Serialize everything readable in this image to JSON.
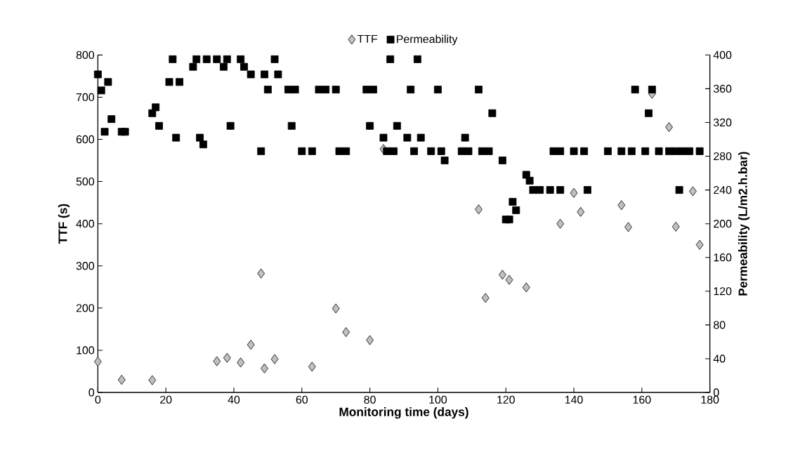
{
  "chart_data": {
    "type": "scatter",
    "xlabel": "Monitoring time (days)",
    "ylabel": "TTF (s)",
    "y2label": "Permeability (L/m2.h.bar)",
    "legend": "top",
    "grid": false,
    "xlim": [
      0,
      180
    ],
    "xticks": [
      0,
      20,
      40,
      60,
      80,
      100,
      120,
      140,
      160,
      180
    ],
    "ylim": [
      0,
      800
    ],
    "yticks": [
      0,
      100,
      200,
      300,
      400,
      500,
      600,
      700,
      800
    ],
    "y2lim": [
      0,
      400
    ],
    "y2ticks": [
      0,
      40,
      80,
      120,
      160,
      200,
      240,
      280,
      320,
      360,
      400
    ],
    "series": [
      {
        "name": "TTF",
        "color": "#c0c0c0",
        "marker": "diamond",
        "axis": "y",
        "x": [
          0,
          7,
          16,
          35,
          38,
          42,
          45,
          48,
          49,
          52,
          63,
          70,
          73,
          80,
          84,
          112,
          114,
          119,
          121,
          126,
          136,
          140,
          142,
          154,
          156,
          163,
          168,
          170,
          175,
          177
        ],
        "values": [
          73,
          30,
          29,
          74,
          82,
          71,
          113,
          282,
          57,
          79,
          61,
          199,
          143,
          124,
          577,
          434,
          224,
          279,
          267,
          249,
          400,
          473,
          428,
          444,
          392,
          708,
          629,
          393,
          477,
          350
        ]
      },
      {
        "name": "Permeability",
        "color": "#000000",
        "marker": "square",
        "axis": "y2",
        "x": [
          0,
          1,
          2,
          3,
          4,
          7,
          8,
          16,
          17,
          18,
          21,
          22,
          23,
          24,
          28,
          29,
          30,
          31,
          32,
          35,
          37,
          38,
          39,
          42,
          43,
          45,
          48,
          49,
          50,
          52,
          53,
          56,
          57,
          58,
          60,
          63,
          65,
          67,
          70,
          71,
          73,
          79,
          80,
          81,
          84,
          85,
          86,
          87,
          88,
          91,
          92,
          93,
          94,
          95,
          98,
          100,
          101,
          102,
          107,
          108,
          109,
          112,
          113,
          115,
          116,
          119,
          120,
          121,
          122,
          123,
          126,
          127,
          128,
          130,
          133,
          136,
          134,
          136,
          140,
          143,
          144,
          150,
          154,
          157,
          158,
          161,
          162,
          163,
          165,
          168,
          170,
          171,
          172,
          174,
          177
        ],
        "values": [
          377,
          358,
          309,
          368,
          324,
          309,
          309,
          331,
          338,
          316,
          368,
          395,
          302,
          368,
          386,
          395,
          302,
          294,
          395,
          395,
          386,
          395,
          316,
          395,
          386,
          377,
          286,
          377,
          359,
          395,
          377,
          359,
          316,
          359,
          286,
          286,
          359,
          359,
          359,
          286,
          286,
          359,
          316,
          359,
          302,
          286,
          395,
          286,
          316,
          302,
          359,
          286,
          395,
          302,
          286,
          359,
          286,
          275,
          286,
          302,
          286,
          359,
          286,
          286,
          331,
          275,
          205,
          205,
          226,
          216,
          258,
          251,
          240,
          240,
          240,
          240,
          286,
          286,
          286,
          286,
          240,
          286,
          286,
          286,
          359,
          286,
          331,
          359,
          286,
          286,
          286,
          240,
          286,
          286,
          286
        ]
      }
    ]
  }
}
